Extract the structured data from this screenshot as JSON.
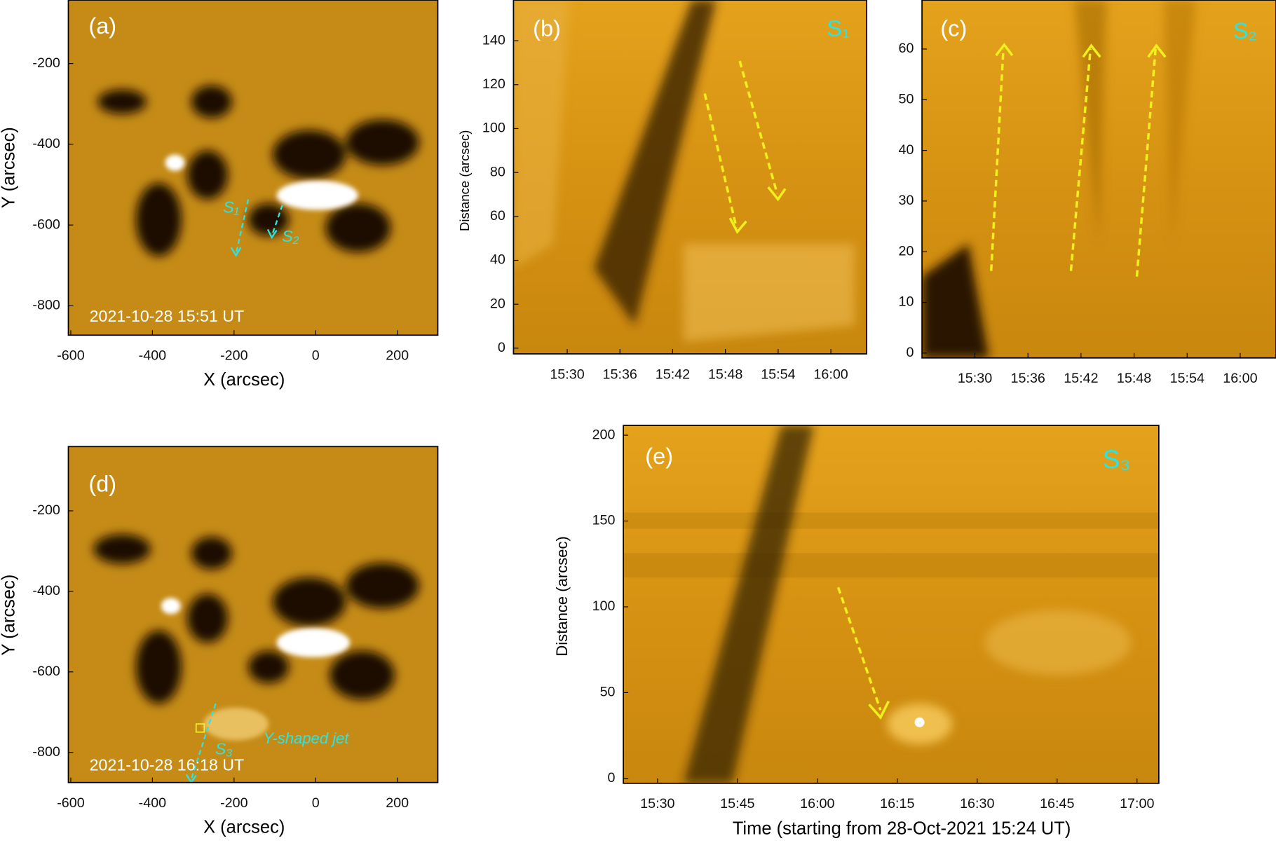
{
  "panels": [
    {
      "label": "(a)",
      "ylabel": "Y (arcsec)",
      "xlabel": "X (arcsec)",
      "yticks": [
        -200,
        -400,
        -600,
        -800
      ],
      "xticks": [
        -600,
        -400,
        -200,
        0,
        200
      ],
      "timestamp": "2021-10-28 15:51 UT",
      "slits": [
        "S₁",
        "S₂"
      ]
    },
    {
      "label": "(b)",
      "ylabel": "Distance (arcsec)",
      "yticks": [
        0,
        20,
        40,
        60,
        80,
        100,
        120,
        140
      ],
      "xticks": [
        "15:30",
        "15:36",
        "15:42",
        "15:48",
        "15:54",
        "16:00"
      ],
      "slits": [
        "S₁"
      ]
    },
    {
      "label": "(c)",
      "yticks": [
        0,
        10,
        20,
        30,
        40,
        50,
        60
      ],
      "xticks": [
        "15:30",
        "15:36",
        "15:42",
        "15:48",
        "15:54",
        "16:00"
      ],
      "slits": [
        "S₂"
      ]
    },
    {
      "label": "(d)",
      "ylabel": "Y (arcsec)",
      "xlabel": "X (arcsec)",
      "yticks": [
        -200,
        -400,
        -600,
        -800
      ],
      "xticks": [
        -600,
        -400,
        -200,
        0,
        200
      ],
      "timestamp": "2021-10-28 16:18 UT",
      "slits": [
        "S₃"
      ],
      "annotation": "Y-shaped jet"
    },
    {
      "label": "(e)",
      "ylabel": "Distance (arcsec)",
      "xlabel": "Time (starting from 28-Oct-2021 15:24 UT)",
      "yticks": [
        0,
        50,
        100,
        150,
        200
      ],
      "xticks": [
        "15:30",
        "15:45",
        "16:00",
        "16:15",
        "16:30",
        "16:45",
        "17:00"
      ],
      "slits": [
        "S₃"
      ]
    }
  ]
}
